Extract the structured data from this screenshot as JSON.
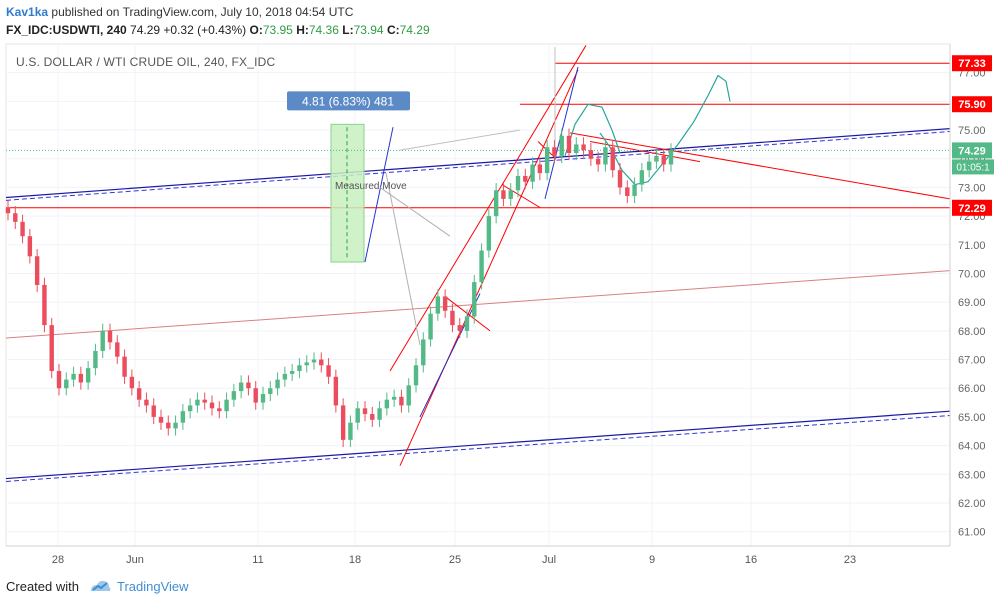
{
  "header": {
    "author": "Kav1ka",
    "published_text": "published on TradingView.com, July 10, 2018 04:54 UTC",
    "symbol_interval": "FX_IDC:USDWTI, 240",
    "last": "74.29",
    "change": "+0.32 (+0.43%)",
    "o_label": "O:",
    "o_val": "73.95",
    "h_label": "H:",
    "h_val": "74.36",
    "l_label": "L:",
    "l_val": "73.94",
    "c_label": "C:",
    "c_val": "74.29"
  },
  "chart_title": "U.S. DOLLAR / WTI CRUDE OIL, 240, FX_IDC",
  "footer": {
    "created_with": "Created with",
    "brand": "TradingView"
  },
  "colors": {
    "up": "#53b987",
    "down": "#eb4d5c",
    "red_line": "#ff0000",
    "blue_line": "#1a1aa6",
    "teal_curve": "#26a69a",
    "label_blue": "#5b8ac7"
  },
  "chart_data": {
    "type": "candlestick",
    "title": "U.S. DOLLAR / WTI CRUDE OIL, 240, FX_IDC",
    "y_axis": {
      "ticks": [
        "61.00",
        "62.00",
        "63.00",
        "64.00",
        "65.00",
        "66.00",
        "67.00",
        "68.00",
        "69.00",
        "70.00",
        "71.00",
        "72.00",
        "73.00",
        "74.00",
        "75.00",
        "76.00",
        "77.00"
      ],
      "ylim": [
        60.5,
        78.0
      ]
    },
    "x_axis": {
      "ticks": [
        "28",
        "Jun",
        "11",
        "18",
        "25",
        "Jul",
        "9",
        "16",
        "23"
      ]
    },
    "price_labels": [
      {
        "value": 77.33,
        "text": "77.33",
        "color": "#ff0000"
      },
      {
        "value": 75.9,
        "text": "75.90",
        "color": "#ff0000"
      },
      {
        "value": 74.29,
        "text": "74.29",
        "color": "#53b987"
      },
      {
        "value": 72.29,
        "text": "72.29",
        "color": "#ff0000"
      }
    ],
    "countdown": "01:05:1",
    "horizontal_lines": [
      77.33,
      75.9,
      72.29
    ],
    "measure_label": "4.81 (6.83%) 481",
    "measure_text": "Measured Move",
    "close_series": [
      72.1,
      71.8,
      71.3,
      70.6,
      69.6,
      68.2,
      66.6,
      66.0,
      66.3,
      66.5,
      66.2,
      66.7,
      67.3,
      68.0,
      67.6,
      67.1,
      66.4,
      66.0,
      65.6,
      65.4,
      65.0,
      64.8,
      64.6,
      64.8,
      65.2,
      65.4,
      65.6,
      65.5,
      65.3,
      65.2,
      65.6,
      65.9,
      66.2,
      66.0,
      65.5,
      65.8,
      66.0,
      66.3,
      66.5,
      66.6,
      66.8,
      66.9,
      67.0,
      66.8,
      66.4,
      65.4,
      64.2,
      64.8,
      65.3,
      65.1,
      64.9,
      65.3,
      65.6,
      65.7,
      65.4,
      66.1,
      66.8,
      67.7,
      68.6,
      69.2,
      68.7,
      68.2,
      68.0,
      68.5,
      69.7,
      70.8,
      72.0,
      72.9,
      72.6,
      72.9,
      73.4,
      73.2,
      73.8,
      73.5,
      74.4,
      74.1,
      74.8,
      74.2,
      74.5,
      74.3,
      74.0,
      73.8,
      74.4,
      73.6,
      73.0,
      72.7,
      73.1,
      73.6,
      73.9,
      74.1,
      73.8,
      74.29
    ]
  }
}
